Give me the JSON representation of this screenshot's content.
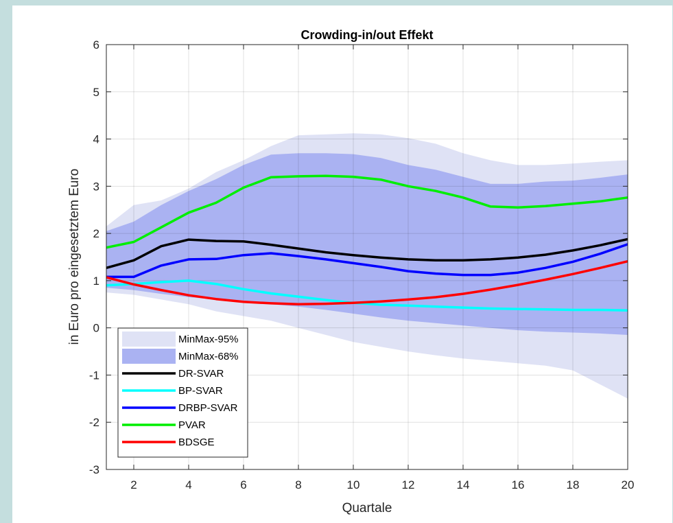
{
  "chart_data": {
    "type": "area",
    "title": "Crowding-in/out Effekt",
    "xlabel": "Quartale",
    "ylabel": "in Euro pro eingesetztem Euro",
    "xlim": [
      1,
      20
    ],
    "ylim": [
      -3,
      6
    ],
    "xticks": [
      2,
      4,
      6,
      8,
      10,
      12,
      14,
      16,
      18,
      20
    ],
    "yticks": [
      -3,
      -2,
      -1,
      0,
      1,
      2,
      3,
      4,
      5,
      6
    ],
    "grid": true,
    "legend_position": "bottom-left",
    "x": [
      1,
      2,
      3,
      4,
      5,
      6,
      7,
      8,
      9,
      10,
      11,
      12,
      13,
      14,
      15,
      16,
      17,
      18,
      19,
      20
    ],
    "bands": [
      {
        "name": "MinMax-95%",
        "color": "#dfe2f5",
        "upper": [
          2.15,
          2.6,
          2.7,
          2.95,
          3.3,
          3.55,
          3.85,
          4.08,
          4.1,
          4.12,
          4.1,
          4.02,
          3.9,
          3.7,
          3.55,
          3.45,
          3.45,
          3.48,
          3.52,
          3.55
        ],
        "lower": [
          0.75,
          0.7,
          0.6,
          0.5,
          0.35,
          0.25,
          0.15,
          0.0,
          -0.15,
          -0.3,
          -0.4,
          -0.5,
          -0.58,
          -0.65,
          -0.7,
          -0.75,
          -0.8,
          -0.9,
          -1.2,
          -1.5
        ]
      },
      {
        "name": "MinMax-68%",
        "color": "#aab2f2",
        "upper": [
          2.05,
          2.25,
          2.6,
          2.9,
          3.15,
          3.45,
          3.67,
          3.7,
          3.7,
          3.68,
          3.6,
          3.45,
          3.35,
          3.2,
          3.05,
          3.05,
          3.1,
          3.12,
          3.18,
          3.25
        ],
        "lower": [
          0.85,
          0.8,
          0.72,
          0.65,
          0.6,
          0.55,
          0.5,
          0.45,
          0.38,
          0.3,
          0.22,
          0.15,
          0.1,
          0.05,
          0.0,
          -0.05,
          -0.08,
          -0.1,
          -0.12,
          -0.15
        ]
      }
    ],
    "series": [
      {
        "name": "DR-SVAR",
        "color": "#000000",
        "values": [
          1.27,
          1.43,
          1.73,
          1.87,
          1.84,
          1.83,
          1.76,
          1.68,
          1.6,
          1.54,
          1.49,
          1.45,
          1.43,
          1.43,
          1.45,
          1.49,
          1.55,
          1.64,
          1.75,
          1.88
        ]
      },
      {
        "name": "BP-SVAR",
        "color": "#00ffff",
        "values": [
          0.9,
          0.93,
          0.97,
          1.0,
          0.93,
          0.82,
          0.73,
          0.66,
          0.59,
          0.53,
          0.49,
          0.47,
          0.45,
          0.43,
          0.41,
          0.4,
          0.39,
          0.38,
          0.38,
          0.37
        ]
      },
      {
        "name": "DRBP-SVAR",
        "color": "#0000ff",
        "values": [
          1.08,
          1.08,
          1.32,
          1.45,
          1.46,
          1.54,
          1.58,
          1.52,
          1.45,
          1.37,
          1.29,
          1.2,
          1.15,
          1.12,
          1.12,
          1.17,
          1.27,
          1.4,
          1.57,
          1.77
        ]
      },
      {
        "name": "PVAR",
        "color": "#00ee00",
        "values": [
          1.7,
          1.82,
          2.13,
          2.44,
          2.65,
          2.97,
          3.19,
          3.21,
          3.22,
          3.2,
          3.14,
          3.0,
          2.9,
          2.76,
          2.57,
          2.55,
          2.58,
          2.63,
          2.68,
          2.76
        ]
      },
      {
        "name": "BDSGE",
        "color": "#ff0000",
        "values": [
          1.07,
          0.92,
          0.8,
          0.69,
          0.61,
          0.55,
          0.52,
          0.5,
          0.51,
          0.53,
          0.56,
          0.6,
          0.65,
          0.72,
          0.81,
          0.91,
          1.02,
          1.14,
          1.27,
          1.41
        ]
      }
    ]
  }
}
